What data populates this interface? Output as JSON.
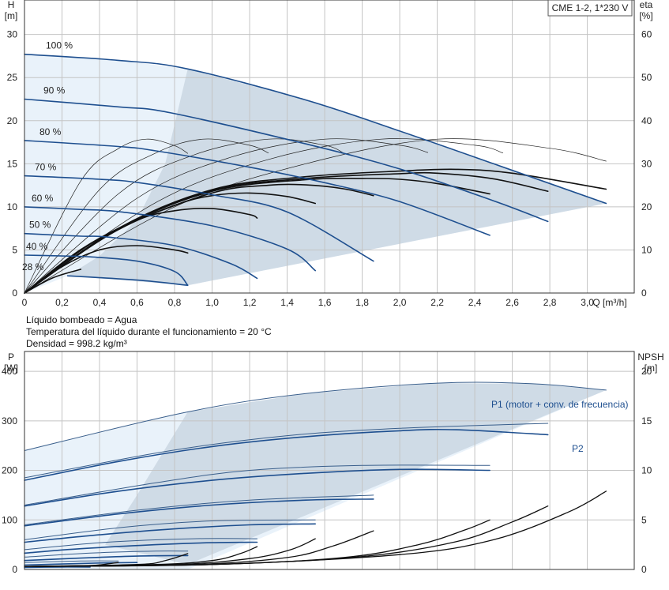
{
  "chart_data": [
    {
      "type": "line",
      "title": "CME 1-2, 1*230 V",
      "xlabel": "Q [m³/h]",
      "ylabel_left": "H\n[m]",
      "ylabel_right": "eta\n[%]",
      "xlim": [
        0,
        3.25
      ],
      "ylim_left": [
        0,
        34
      ],
      "ylim_right": [
        0,
        68
      ],
      "x_ticks": [
        "0",
        "0,2",
        "0,4",
        "0,6",
        "0,8",
        "1,0",
        "1,2",
        "1,4",
        "1,6",
        "1,8",
        "2,0",
        "2,2",
        "2,4",
        "2,6",
        "2,8",
        "3,0"
      ],
      "y_ticks_left": [
        "0",
        "5",
        "10",
        "15",
        "20",
        "25",
        "30"
      ],
      "y_ticks_right": [
        "0",
        "10",
        "20",
        "30",
        "40",
        "50",
        "60"
      ],
      "grid": true,
      "speed_labels": [
        "100 %",
        "90 %",
        "80 %",
        "70 %",
        "60 %",
        "50 %",
        "40 %",
        "28 %"
      ],
      "speed_fractions": [
        1.0,
        0.9,
        0.8,
        0.7,
        0.6,
        0.5,
        0.4,
        0.28
      ],
      "series_head": [
        {
          "name": "100 %",
          "x": [
            0,
            0.5,
            0.87,
            1.5,
            2.0,
            2.5,
            3.1
          ],
          "y": [
            27.7,
            27.0,
            26.0,
            22.4,
            18.8,
            15.0,
            10.4
          ]
        },
        {
          "name": "90 %",
          "x": [
            0,
            0.5,
            0.78,
            1.5,
            2.0,
            2.5,
            2.79
          ],
          "y": [
            22.5,
            21.6,
            20.9,
            17.3,
            14.4,
            10.7,
            8.3
          ]
        },
        {
          "name": "80 %",
          "x": [
            0,
            0.5,
            0.7,
            1.2,
            1.6,
            2.0,
            2.48
          ],
          "y": [
            17.7,
            17.0,
            16.5,
            14.6,
            12.8,
            10.6,
            6.7
          ]
        },
        {
          "name": "70 %",
          "x": [
            0,
            0.4,
            0.61,
            1.0,
            1.4,
            1.86
          ],
          "y": [
            13.6,
            13.2,
            12.8,
            11.4,
            9.4,
            3.7
          ]
        },
        {
          "name": "60 %",
          "x": [
            0,
            0.3,
            0.52,
            1.0,
            1.4,
            1.55
          ],
          "y": [
            10.0,
            9.7,
            9.4,
            7.8,
            5.1,
            2.6
          ]
        },
        {
          "name": "50 %",
          "x": [
            0,
            0.3,
            0.44,
            0.8,
            1.1,
            1.24
          ],
          "y": [
            6.9,
            6.6,
            6.5,
            5.5,
            3.4,
            1.7
          ]
        },
        {
          "name": "40 %",
          "x": [
            0,
            0.2,
            0.35,
            0.6,
            0.8,
            0.87
          ],
          "y": [
            4.4,
            4.3,
            4.2,
            3.7,
            2.5,
            0.9
          ]
        },
        {
          "name": "28 %",
          "x": [
            0.23,
            0.6,
            0.87
          ],
          "y": [
            2.0,
            1.5,
            0.9
          ]
        }
      ],
      "series_eta": [
        {
          "name": "100 %",
          "x": [
            0,
            0.5,
            1.0,
            1.5,
            2.0,
            2.3,
            2.6,
            3.1
          ],
          "y": [
            0,
            15,
            24,
            27,
            28.3,
            28.7,
            27.8,
            24.1
          ]
        },
        {
          "name": "90 %",
          "x": [
            0,
            0.5,
            1.0,
            1.5,
            2.0,
            2.2,
            2.5,
            2.79
          ],
          "y": [
            0,
            15,
            23.8,
            26.6,
            27.7,
            27.8,
            26.5,
            23.6
          ]
        },
        {
          "name": "80 %",
          "x": [
            0,
            0.5,
            1.0,
            1.5,
            1.8,
            2.0,
            2.2,
            2.48
          ],
          "y": [
            0,
            14.8,
            23.6,
            26.3,
            26.6,
            26.4,
            25.4,
            23.0
          ]
        },
        {
          "name": "70 %",
          "x": [
            0,
            0.5,
            1.0,
            1.3,
            1.5,
            1.7,
            1.86
          ],
          "y": [
            0,
            14.7,
            23.2,
            25.0,
            25.1,
            24.2,
            22.6
          ]
        },
        {
          "name": "60 %",
          "x": [
            0,
            0.4,
            0.8,
            1.0,
            1.2,
            1.4,
            1.55
          ],
          "y": [
            0,
            12.7,
            20.3,
            22.6,
            23.2,
            22.4,
            20.8
          ]
        },
        {
          "name": "50 %",
          "x": [
            0,
            0.3,
            0.6,
            0.8,
            1.0,
            1.2,
            1.24
          ],
          "y": [
            0,
            10.1,
            16.9,
            19.1,
            19.6,
            18.2,
            17.4
          ]
        },
        {
          "name": "40 %",
          "x": [
            0,
            0.2,
            0.4,
            0.6,
            0.8,
            0.87
          ],
          "y": [
            0,
            6.1,
            10.0,
            11.0,
            10.0,
            9.3
          ]
        },
        {
          "name": "28 %",
          "x": [
            0,
            0.15,
            0.3
          ],
          "y": [
            0,
            3.5,
            5.5
          ]
        }
      ],
      "series_eta_thin": [
        {
          "x": [
            0,
            0.3,
            0.5,
            0.65,
            0.8,
            0.87
          ],
          "y": [
            0,
            26,
            33.5,
            35.7,
            34.2,
            32.4
          ]
        },
        {
          "x": [
            0,
            0.4,
            0.7,
            0.95,
            1.2,
            1.3
          ],
          "y": [
            0,
            24,
            32.5,
            35.7,
            34.3,
            32.5
          ]
        },
        {
          "x": [
            0,
            0.5,
            0.9,
            1.3,
            1.6,
            1.7
          ],
          "y": [
            0,
            23,
            32,
            35.7,
            34.3,
            32.5
          ]
        },
        {
          "x": [
            0,
            0.6,
            1.1,
            1.6,
            2.0,
            2.15
          ],
          "y": [
            0,
            22,
            31.5,
            35.7,
            34.3,
            32.6
          ]
        },
        {
          "x": [
            0,
            0.7,
            1.3,
            1.9,
            2.4,
            2.55
          ],
          "y": [
            0,
            21,
            31,
            35.7,
            34.3,
            32.5
          ]
        },
        {
          "x": [
            0,
            0.8,
            1.5,
            2.2,
            2.8,
            3.1
          ],
          "y": [
            0,
            20,
            30,
            35.7,
            33.6,
            30.6
          ]
        }
      ]
    },
    {
      "type": "line",
      "xlim": [
        0,
        3.25
      ],
      "ylabel_left": "P\n[W]",
      "ylabel_right": "NPSH\n[m]",
      "ylim_left": [
        0,
        440
      ],
      "ylim_right": [
        0,
        22
      ],
      "y_ticks_left": [
        "0",
        "100",
        "200",
        "300",
        "400"
      ],
      "y_ticks_right": [
        "0",
        "5",
        "10",
        "15",
        "20"
      ],
      "grid": true,
      "annotations": [
        "P1 (motor + conv. de frecuencia)",
        "P2"
      ],
      "series_P1": [
        {
          "name": "100 %",
          "x": [
            0,
            0.87,
            1.5,
            2.2,
            2.7,
            3.1
          ],
          "y": [
            240,
            318,
            355,
            376,
            375,
            362
          ]
        },
        {
          "name": "90 %",
          "x": [
            0,
            0.78,
            1.4,
            2.0,
            2.79
          ],
          "y": [
            185,
            240,
            270,
            285,
            295
          ]
        },
        {
          "name": "80 %",
          "x": [
            0,
            0.7,
            1.2,
            1.8,
            2.48
          ],
          "y": [
            130,
            175,
            200,
            210,
            210
          ]
        },
        {
          "name": "70 %",
          "x": [
            0,
            0.61,
            1.2,
            1.86
          ],
          "y": [
            90,
            120,
            140,
            150
          ]
        },
        {
          "name": "60 %",
          "x": [
            0,
            0.52,
            1.0,
            1.55
          ],
          "y": [
            60,
            85,
            98,
            100
          ]
        },
        {
          "name": "50 %",
          "x": [
            0,
            0.44,
            0.9,
            1.24
          ],
          "y": [
            40,
            55,
            62,
            62
          ]
        },
        {
          "name": "40 %",
          "x": [
            0,
            0.35,
            0.7,
            0.87
          ],
          "y": [
            25,
            33,
            37,
            37
          ]
        },
        {
          "name": "28 %",
          "x": [
            0,
            0.3,
            0.5
          ],
          "y": [
            14,
            17,
            17
          ]
        }
      ],
      "series_P2": [
        {
          "name": "100 %",
          "x": [
            0,
            0.5,
            1.0,
            1.5,
            2.0,
            2.3,
            2.79
          ],
          "y": [
            180,
            218,
            248,
            268,
            280,
            282,
            272
          ]
        },
        {
          "name": "90 %",
          "x": [
            0,
            0.5,
            1.0,
            1.5,
            2.0,
            2.48
          ],
          "y": [
            128,
            158,
            180,
            194,
            202,
            200
          ]
        },
        {
          "name": "80 %",
          "x": [
            0,
            0.5,
            1.0,
            1.5,
            1.86
          ],
          "y": [
            88,
            112,
            130,
            140,
            142
          ]
        },
        {
          "name": "70 %",
          "x": [
            0,
            0.4,
            0.8,
            1.2,
            1.55
          ],
          "y": [
            55,
            70,
            82,
            90,
            92
          ]
        },
        {
          "name": "60 %",
          "x": [
            0,
            0.3,
            0.7,
            1.0,
            1.24
          ],
          "y": [
            33,
            42,
            50,
            54,
            55
          ]
        },
        {
          "name": "50 %",
          "x": [
            0,
            0.3,
            0.6,
            0.87
          ],
          "y": [
            18,
            23,
            27,
            28
          ]
        },
        {
          "name": "40 %",
          "x": [
            0,
            0.2,
            0.4,
            0.6
          ],
          "y": [
            9,
            11,
            13,
            14
          ]
        },
        {
          "name": "28 %",
          "x": [
            0,
            0.2,
            0.35
          ],
          "y": [
            4,
            5,
            5
          ]
        }
      ],
      "series_NPSH": [
        {
          "name": "100 %",
          "x": [
            0,
            1.0,
            2.0,
            2.5,
            2.9,
            3.1
          ],
          "y": [
            0.3,
            0.5,
            1.5,
            3.0,
            5.8,
            7.9
          ]
        },
        {
          "name": "90 %",
          "x": [
            0,
            1.0,
            1.8,
            2.3,
            2.6,
            2.79
          ],
          "y": [
            0.3,
            0.5,
            1.3,
            2.8,
            4.8,
            6.4
          ]
        },
        {
          "name": "80 %",
          "x": [
            0,
            1.0,
            1.7,
            2.1,
            2.35,
            2.48
          ],
          "y": [
            0.3,
            0.5,
            1.2,
            2.5,
            4.0,
            5.0
          ]
        },
        {
          "name": "70 %",
          "x": [
            0,
            0.9,
            1.4,
            1.65,
            1.86
          ],
          "y": [
            0.3,
            0.5,
            1.2,
            2.4,
            3.9
          ]
        },
        {
          "name": "60 %",
          "x": [
            0,
            0.8,
            1.2,
            1.42,
            1.55
          ],
          "y": [
            0.3,
            0.5,
            1.1,
            2.0,
            3.1
          ]
        },
        {
          "name": "50 %",
          "x": [
            0,
            0.7,
            1.0,
            1.15,
            1.24
          ],
          "y": [
            0.3,
            0.5,
            0.9,
            1.6,
            2.3
          ]
        },
        {
          "name": "40 %",
          "x": [
            0,
            0.6,
            0.75,
            0.87
          ],
          "y": [
            0.3,
            0.5,
            0.9,
            1.6
          ]
        },
        {
          "name": "28 %",
          "x": [
            0,
            0.35,
            0.5
          ],
          "y": [
            0.3,
            0.4,
            0.7
          ]
        }
      ]
    }
  ],
  "fluid": {
    "line1": "Líquido bombeado = Agua",
    "line2": "Temperatura del líquido durante el funcionamiento = 20 °C",
    "line3": "Densidad = 998.2 kg/m³"
  },
  "colors": {
    "curve_blue": "#1e4f8f",
    "area_fill": "#cfdbe6",
    "area_light": "#e9f2fa",
    "grid": "#c4c4c4",
    "eta_black": "#111111"
  }
}
